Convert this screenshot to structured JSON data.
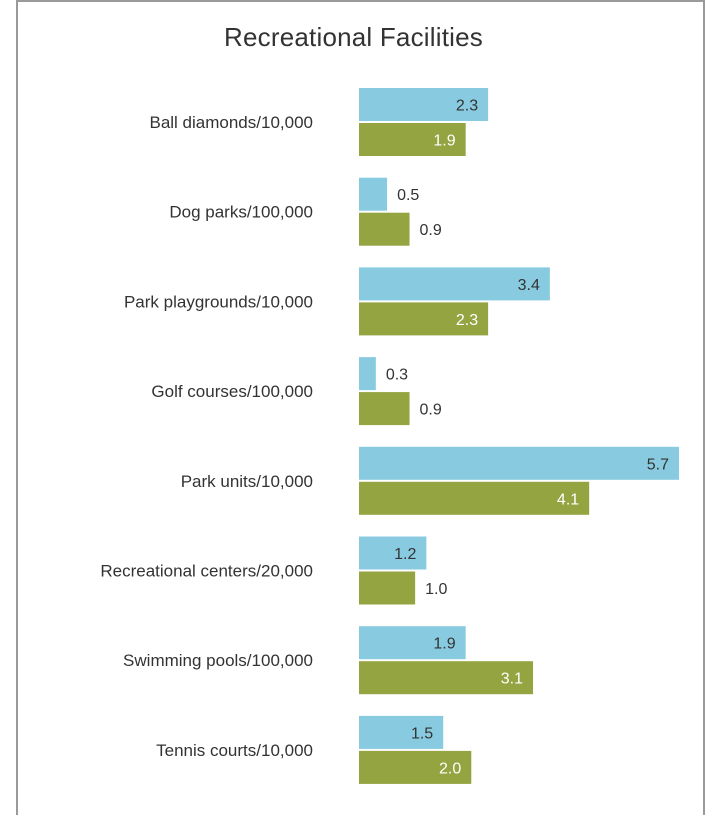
{
  "chart_data": {
    "type": "bar",
    "orientation": "horizontal",
    "title": "Recreational Facilities",
    "xlabel": "",
    "ylabel": "",
    "categories": [
      "Ball diamonds/10,000",
      "Dog parks/100,000",
      "Park playgrounds/10,000",
      "Golf courses/100,000",
      "Park units/10,000",
      "Recreational centers/20,000",
      "Swimming pools/100,000",
      "Tennis courts/10,000"
    ],
    "series": [
      {
        "values": [
          2.3,
          0.5,
          3.4,
          0.3,
          5.7,
          1.2,
          1.9,
          1.5
        ],
        "labels": [
          "2.3",
          "0.5",
          "3.4",
          "0.3",
          "5.7",
          "1.2",
          "1.9",
          "1.5"
        ],
        "color": "#88cbe0"
      },
      {
        "values": [
          1.9,
          0.9,
          2.3,
          0.9,
          4.1,
          1.0,
          3.1,
          2.0
        ],
        "labels": [
          "1.9",
          "0.9",
          "2.3",
          "0.9",
          "4.1",
          "1.0",
          "3.1",
          "2.0"
        ],
        "color": "#93a441"
      }
    ],
    "xlim": [
      0,
      5.7
    ],
    "grid": false,
    "legend": "none"
  }
}
